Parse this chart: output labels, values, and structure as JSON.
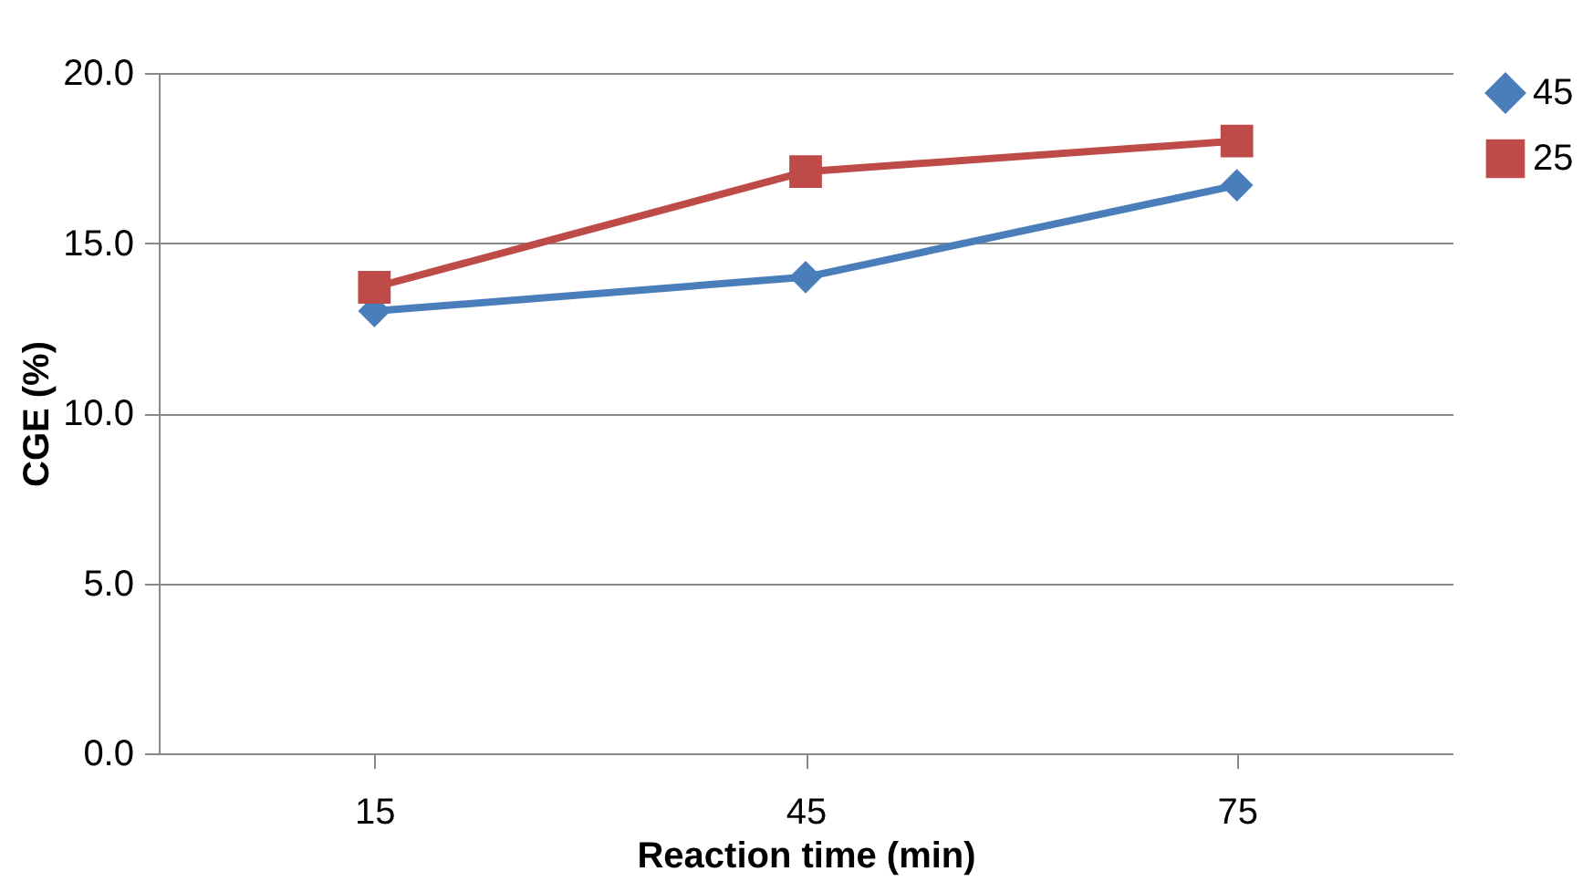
{
  "chart_data": {
    "type": "line",
    "xlabel": "Reaction time (min)",
    "ylabel": "CGE (%)",
    "categories": [
      "15",
      "45",
      "75"
    ],
    "series": [
      {
        "name": "45",
        "color": "#4a7ebb",
        "marker": "diamond",
        "values": [
          13.0,
          14.0,
          16.7
        ]
      },
      {
        "name": "25",
        "color": "#be4b48",
        "marker": "square",
        "values": [
          13.7,
          17.1,
          18.0
        ]
      }
    ],
    "ylim": [
      0,
      20
    ],
    "yticks": [
      {
        "value": 0,
        "label": "0.0"
      },
      {
        "value": 5,
        "label": "5.0"
      },
      {
        "value": 10,
        "label": "10.0"
      },
      {
        "value": 15,
        "label": "15.0"
      },
      {
        "value": 20,
        "label": "20.0"
      }
    ],
    "grid": "y",
    "legend": "right",
    "line_style": "solid"
  }
}
